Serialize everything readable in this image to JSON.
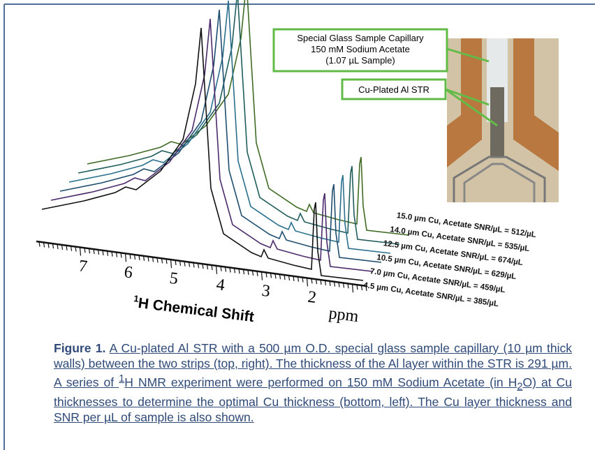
{
  "figure": {
    "callouts": [
      {
        "lines": [
          "Special Glass Sample Capillary",
          "150 mM Sodium Acetate",
          "(1.07 µL Sample)"
        ]
      },
      {
        "lines": [
          "Cu-Plated Al STR"
        ]
      }
    ],
    "axis": {
      "ticks": [
        "7",
        "6",
        "5",
        "4",
        "3",
        "2"
      ],
      "unit": "ppm",
      "title_sup": "1",
      "title": "H Chemical Shift"
    },
    "series_labels": [
      "4.5 µm Cu, Acetate SNR/µL = 385/µL",
      "7.0 µm Cu, Acetate SNR/µL = 459/µL",
      "10.5 µm Cu, Acetate SNR/µL = 629/µL",
      "12.5 µm Cu, Acetate SNR/µL = 674/µL",
      "14.0 µm Cu, Acetate SNR/µL = 535/µL",
      "15.0 µm Cu, Acetate SNR/µL = 512/µL"
    ]
  },
  "caption": {
    "label": "Figure 1.",
    "parts": [
      "A Cu-plated Al STR with a 500 µm O.D. special glass sample capillary (10 µm thick walls) between the two strips (top, right). The thickness of the Al layer within the STR is 291 µm. A series of ",
      "1",
      "H NMR experiment were performed on 150 mM Sodium Acetate (in H",
      "2",
      "O) at Cu thicknesses to determine the optimal Cu thickness (bottom, left). The Cu layer thickness and SNR per µL of sample is also shown."
    ]
  }
}
